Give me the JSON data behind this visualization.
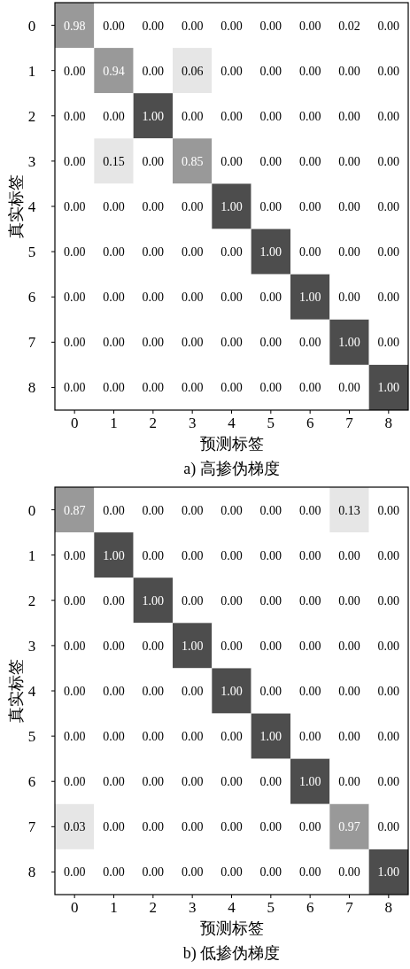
{
  "chart_data": [
    {
      "type": "heatmap",
      "title": "a) 高掺伪梯度",
      "xlabel": "预测标签",
      "ylabel": "真实标签",
      "categories": [
        "0",
        "1",
        "2",
        "3",
        "4",
        "5",
        "6",
        "7",
        "8"
      ],
      "y_categories": [
        "0",
        "1",
        "2",
        "3",
        "4",
        "5",
        "6",
        "7",
        "8"
      ],
      "cells": [
        [
          0.98,
          0,
          0,
          0,
          0,
          0,
          0,
          0.02,
          0
        ],
        [
          0,
          0.94,
          0,
          0.06,
          0,
          0,
          0,
          0,
          0
        ],
        [
          0,
          0,
          1,
          0,
          0,
          0,
          0,
          0,
          0
        ],
        [
          0,
          0.15,
          0,
          0.85,
          0,
          0,
          0,
          0,
          0
        ],
        [
          0,
          0,
          0,
          0,
          1,
          0,
          0,
          0,
          0
        ],
        [
          0,
          0,
          0,
          0,
          0,
          1,
          0,
          0,
          0
        ],
        [
          0,
          0,
          0,
          0,
          0,
          0,
          1,
          0,
          0
        ],
        [
          0,
          0,
          0,
          0,
          0,
          0,
          0,
          1,
          0
        ],
        [
          0,
          0,
          0,
          0,
          0,
          0,
          0,
          0,
          1
        ]
      ],
      "cell_labels": [
        [
          "0.98",
          "0.00",
          "0.00",
          "0.00",
          "0.00",
          "0.00",
          "0.00",
          "0.02",
          "0.00"
        ],
        [
          "0.00",
          "0.94",
          "0.00",
          "0.06",
          "0.00",
          "0.00",
          "0.00",
          "0.00",
          "0.00"
        ],
        [
          "0.00",
          "0.00",
          "1.00",
          "0.00",
          "0.00",
          "0.00",
          "0.00",
          "0.00",
          "0.00"
        ],
        [
          "0.00",
          "0.15",
          "0.00",
          "0.85",
          "0.00",
          "0.00",
          "0.00",
          "0.00",
          "0.00"
        ],
        [
          "0.00",
          "0.00",
          "0.00",
          "0.00",
          "1.00",
          "0.00",
          "0.00",
          "0.00",
          "0.00"
        ],
        [
          "0.00",
          "0.00",
          "0.00",
          "0.00",
          "0.00",
          "1.00",
          "0.00",
          "0.00",
          "0.00"
        ],
        [
          "0.00",
          "0.00",
          "0.00",
          "0.00",
          "0.00",
          "0.00",
          "1.00",
          "0.00",
          "0.00"
        ],
        [
          "0.00",
          "0.00",
          "0.00",
          "0.00",
          "0.00",
          "0.00",
          "0.00",
          "1.00",
          "0.00"
        ],
        [
          "0.00",
          "0.00",
          "0.00",
          "0.00",
          "0.00",
          "0.00",
          "0.00",
          "0.00",
          "1.00"
        ]
      ]
    },
    {
      "type": "heatmap",
      "title": "b) 低掺伪梯度",
      "xlabel": "预测标签",
      "ylabel": "真实标签",
      "categories": [
        "0",
        "1",
        "2",
        "3",
        "4",
        "5",
        "6",
        "7",
        "8"
      ],
      "y_categories": [
        "0",
        "1",
        "2",
        "3",
        "4",
        "5",
        "6",
        "7",
        "8"
      ],
      "cells": [
        [
          0.87,
          0,
          0,
          0,
          0,
          0,
          0,
          0.13,
          0
        ],
        [
          0,
          1,
          0,
          0,
          0,
          0,
          0,
          0,
          0
        ],
        [
          0,
          0,
          1,
          0,
          0,
          0,
          0,
          0,
          0
        ],
        [
          0,
          0,
          0,
          1,
          0,
          0,
          0,
          0,
          0
        ],
        [
          0,
          0,
          0,
          0,
          1,
          0,
          0,
          0,
          0
        ],
        [
          0,
          0,
          0,
          0,
          0,
          1,
          0,
          0,
          0
        ],
        [
          0,
          0,
          0,
          0,
          0,
          0,
          1,
          0,
          0
        ],
        [
          0.03,
          0,
          0,
          0,
          0,
          0,
          0,
          0.97,
          0
        ],
        [
          0,
          0,
          0,
          0,
          0,
          0,
          0,
          0,
          1
        ]
      ],
      "cell_labels": [
        [
          "0.87",
          "0.00",
          "0.00",
          "0.00",
          "0.00",
          "0.00",
          "0.00",
          "0.13",
          "0.00"
        ],
        [
          "0.00",
          "1.00",
          "0.00",
          "0.00",
          "0.00",
          "0.00",
          "0.00",
          "0.00",
          "0.00"
        ],
        [
          "0.00",
          "0.00",
          "1.00",
          "0.00",
          "0.00",
          "0.00",
          "0.00",
          "0.00",
          "0.00"
        ],
        [
          "0.00",
          "0.00",
          "0.00",
          "1.00",
          "0.00",
          "0.00",
          "0.00",
          "0.00",
          "0.00"
        ],
        [
          "0.00",
          "0.00",
          "0.00",
          "0.00",
          "1.00",
          "0.00",
          "0.00",
          "0.00",
          "0.00"
        ],
        [
          "0.00",
          "0.00",
          "0.00",
          "0.00",
          "0.00",
          "1.00",
          "0.00",
          "0.00",
          "0.00"
        ],
        [
          "0.00",
          "0.00",
          "0.00",
          "0.00",
          "0.00",
          "0.00",
          "1.00",
          "0.00",
          "0.00"
        ],
        [
          "0.03",
          "0.00",
          "0.00",
          "0.00",
          "0.00",
          "0.00",
          "0.00",
          "0.97",
          "0.00"
        ],
        [
          "0.00",
          "0.00",
          "0.00",
          "0.00",
          "0.00",
          "0.00",
          "0.00",
          "0.00",
          "1.00"
        ]
      ]
    }
  ]
}
